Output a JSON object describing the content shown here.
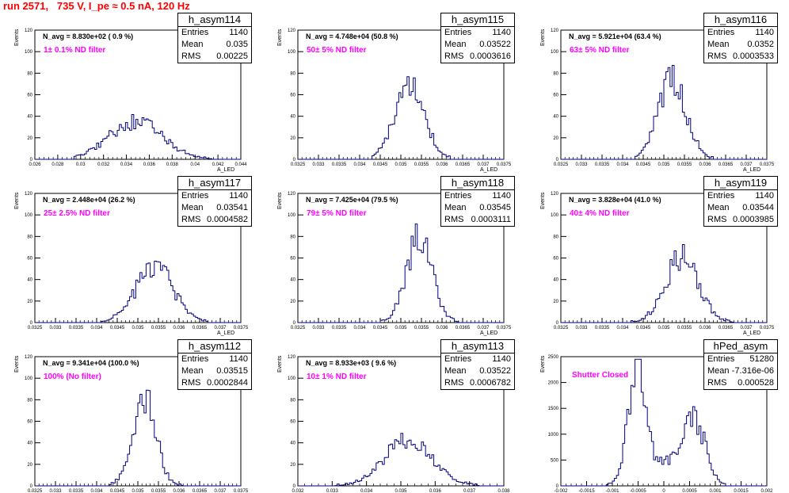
{
  "title": "run 2571,   735 V, I_pe ≈ 0.5 nA, 120 Hz",
  "colors": {
    "title": "#ff0000",
    "histogram": "#000080",
    "annotation": "#ff00ff"
  },
  "chart_data": [
    {
      "type": "histogram",
      "name": "h_asym114",
      "entries": "1140",
      "mean": "0.035",
      "rms": "0.00225",
      "n_avg": "N_avg = 8.830e+02 ( 0.9 %)",
      "filter": "1± 0.1% ND filter",
      "xlim": [
        0.026,
        0.044
      ],
      "ylim": [
        0,
        120
      ],
      "xticks": [
        "0.026",
        "0.028",
        "0.03",
        "0.032",
        "0.034",
        "0.036",
        "0.038",
        "0.04",
        "0.042",
        "0.044"
      ],
      "yticks": [
        "0",
        "20",
        "40",
        "60",
        "80",
        "100",
        "120"
      ],
      "ylabel": "Events",
      "xlabel": "A_LED",
      "dist": [
        [
          0.0348,
          0.0023,
          35
        ]
      ],
      "xmin": 0.0295,
      "xmax": 0.0415
    },
    {
      "type": "histogram",
      "name": "h_asym115",
      "entries": "1140",
      "mean": "0.03522",
      "rms": "0.0003616",
      "n_avg": "N_avg = 4.748e+04 (50.8 %)",
      "filter": "50± 5% ND filter",
      "xlim": [
        0.0325,
        0.0375
      ],
      "ylim": [
        0,
        120
      ],
      "xticks": [
        "0.0325",
        "0.033",
        "0.0335",
        "0.034",
        "0.0345",
        "0.035",
        "0.0355",
        "0.036",
        "0.0365",
        "0.037",
        "0.0375"
      ],
      "yticks": [
        "0",
        "20",
        "40",
        "60",
        "80",
        "100",
        "120"
      ],
      "ylabel": "Events",
      "xlabel": "A_LED",
      "dist": [
        [
          0.03522,
          0.00036,
          67
        ]
      ],
      "xmin": 0.0343,
      "xmax": 0.0362
    },
    {
      "type": "histogram",
      "name": "h_asym116",
      "entries": "1140",
      "mean": "0.0352",
      "rms": "0.0003533",
      "n_avg": "N_avg = 5.921e+04 (63.4 %)",
      "filter": "63± 5% ND filter",
      "xlim": [
        0.0325,
        0.0375
      ],
      "ylim": [
        0,
        120
      ],
      "xticks": [
        "0.0325",
        "0.033",
        "0.0335",
        "0.034",
        "0.0345",
        "0.035",
        "0.0355",
        "0.036",
        "0.0365",
        "0.037",
        "0.0375"
      ],
      "yticks": [
        "0",
        "20",
        "40",
        "60",
        "80",
        "100",
        "120"
      ],
      "ylabel": "Events",
      "xlabel": "A_LED",
      "dist": [
        [
          0.0352,
          0.00034,
          72
        ]
      ],
      "xmin": 0.0343,
      "xmax": 0.0362
    },
    {
      "type": "histogram",
      "name": "h_asym117",
      "entries": "1140",
      "mean": "0.03541",
      "rms": "0.0004582",
      "n_avg": "N_avg = 2.448e+04 (26.2 %)",
      "filter": "25± 2.5% ND filter",
      "xlim": [
        0.0325,
        0.0375
      ],
      "ylim": [
        0,
        120
      ],
      "xticks": [
        "0.0325",
        "0.033",
        "0.0335",
        "0.034",
        "0.0345",
        "0.035",
        "0.0355",
        "0.036",
        "0.0365",
        "0.037",
        "0.0375"
      ],
      "yticks": [
        "0",
        "20",
        "40",
        "60",
        "80",
        "100",
        "120"
      ],
      "ylabel": "Events",
      "xlabel": "A_LED",
      "dist": [
        [
          0.03541,
          0.00046,
          50
        ]
      ],
      "xmin": 0.0341,
      "xmax": 0.0367
    },
    {
      "type": "histogram",
      "name": "h_asym118",
      "entries": "1140",
      "mean": "0.03545",
      "rms": "0.0003111",
      "n_avg": "N_avg = 7.425e+04 (79.5 %)",
      "filter": "79± 5% ND filter",
      "xlim": [
        0.0325,
        0.0375
      ],
      "ylim": [
        0,
        120
      ],
      "xticks": [
        "0.0325",
        "0.033",
        "0.0335",
        "0.034",
        "0.0345",
        "0.035",
        "0.0355",
        "0.036",
        "0.0365",
        "0.037",
        "0.0375"
      ],
      "yticks": [
        "0",
        "20",
        "40",
        "60",
        "80",
        "100",
        "120"
      ],
      "ylabel": "Events",
      "xlabel": "A_LED",
      "dist": [
        [
          0.03545,
          0.00031,
          78
        ]
      ],
      "xmin": 0.0345,
      "xmax": 0.0364
    },
    {
      "type": "histogram",
      "name": "h_asym119",
      "entries": "1140",
      "mean": "0.03544",
      "rms": "0.0003985",
      "n_avg": "N_avg = 3.828e+04 (41.0 %)",
      "filter": "40± 4% ND filter",
      "xlim": [
        0.0325,
        0.0375
      ],
      "ylim": [
        0,
        120
      ],
      "xticks": [
        "0.0325",
        "0.033",
        "0.0335",
        "0.034",
        "0.0345",
        "0.035",
        "0.0355",
        "0.036",
        "0.0365",
        "0.037",
        "0.0375"
      ],
      "yticks": [
        "0",
        "20",
        "40",
        "60",
        "80",
        "100",
        "120"
      ],
      "ylabel": "Events",
      "xlabel": "A_LED",
      "dist": [
        [
          0.03544,
          0.0004,
          60
        ]
      ],
      "xmin": 0.0342,
      "xmax": 0.0367
    },
    {
      "type": "histogram",
      "name": "h_asym112",
      "entries": "1140",
      "mean": "0.03515",
      "rms": "0.0002844",
      "n_avg": "N_avg = 9.341e+04 (100.0 %)",
      "filter": "100% (No filter)",
      "xlim": [
        0.0325,
        0.0375
      ],
      "ylim": [
        0,
        120
      ],
      "xticks": [
        "0.0325",
        "0.033",
        "0.0335",
        "0.034",
        "0.0345",
        "0.035",
        "0.0355",
        "0.036",
        "0.0365",
        "0.037",
        "0.0375"
      ],
      "yticks": [
        "0",
        "20",
        "40",
        "60",
        "80",
        "100",
        "120"
      ],
      "ylabel": "Events",
      "xlabel": "A_LED",
      "dist": [
        [
          0.03515,
          0.00028,
          82
        ]
      ],
      "xmin": 0.0343,
      "xmax": 0.0361
    },
    {
      "type": "histogram",
      "name": "h_asym113",
      "entries": "1140",
      "mean": "0.03522",
      "rms": "0.0006782",
      "n_avg": "N_avg = 8.933e+03 ( 9.6 %)",
      "filter": "10± 1% ND filter",
      "xlim": [
        0.032,
        0.038
      ],
      "ylim": [
        0,
        120
      ],
      "xticks": [
        "0.032",
        "0.033",
        "0.034",
        "0.035",
        "0.036",
        "0.037",
        "0.038"
      ],
      "yticks": [
        "0",
        "20",
        "40",
        "60",
        "80",
        "100",
        "120"
      ],
      "ylabel": "Events",
      "xlabel": "A_LED",
      "dist": [
        [
          0.03522,
          0.00068,
          42
        ]
      ],
      "xmin": 0.0331,
      "xmax": 0.0373
    },
    {
      "type": "histogram",
      "name": "hPed_asym",
      "entries": "51280",
      "mean": "-7.316e-06",
      "rms": "0.000528",
      "n_avg": "",
      "filter": "Shutter Closed",
      "xlim": [
        -0.002,
        0.002
      ],
      "ylim": [
        0,
        2500
      ],
      "xticks": [
        "-0.002",
        "-0.0015",
        "-0.001",
        "-0.0005",
        "0",
        "0.0005",
        "0.001",
        "0.0015",
        "0.002"
      ],
      "yticks": [
        "0",
        "500",
        "1000",
        "1500",
        "2000",
        "2500"
      ],
      "ylabel": "Events",
      "xlabel": "A_LED",
      "dist": [
        [
          -0.00052,
          0.00016,
          2250
        ],
        [
          0.00058,
          0.00022,
          1150
        ],
        [
          0.0,
          0.00045,
          420
        ]
      ],
      "xmin": -0.0011,
      "xmax": 0.0012
    }
  ]
}
